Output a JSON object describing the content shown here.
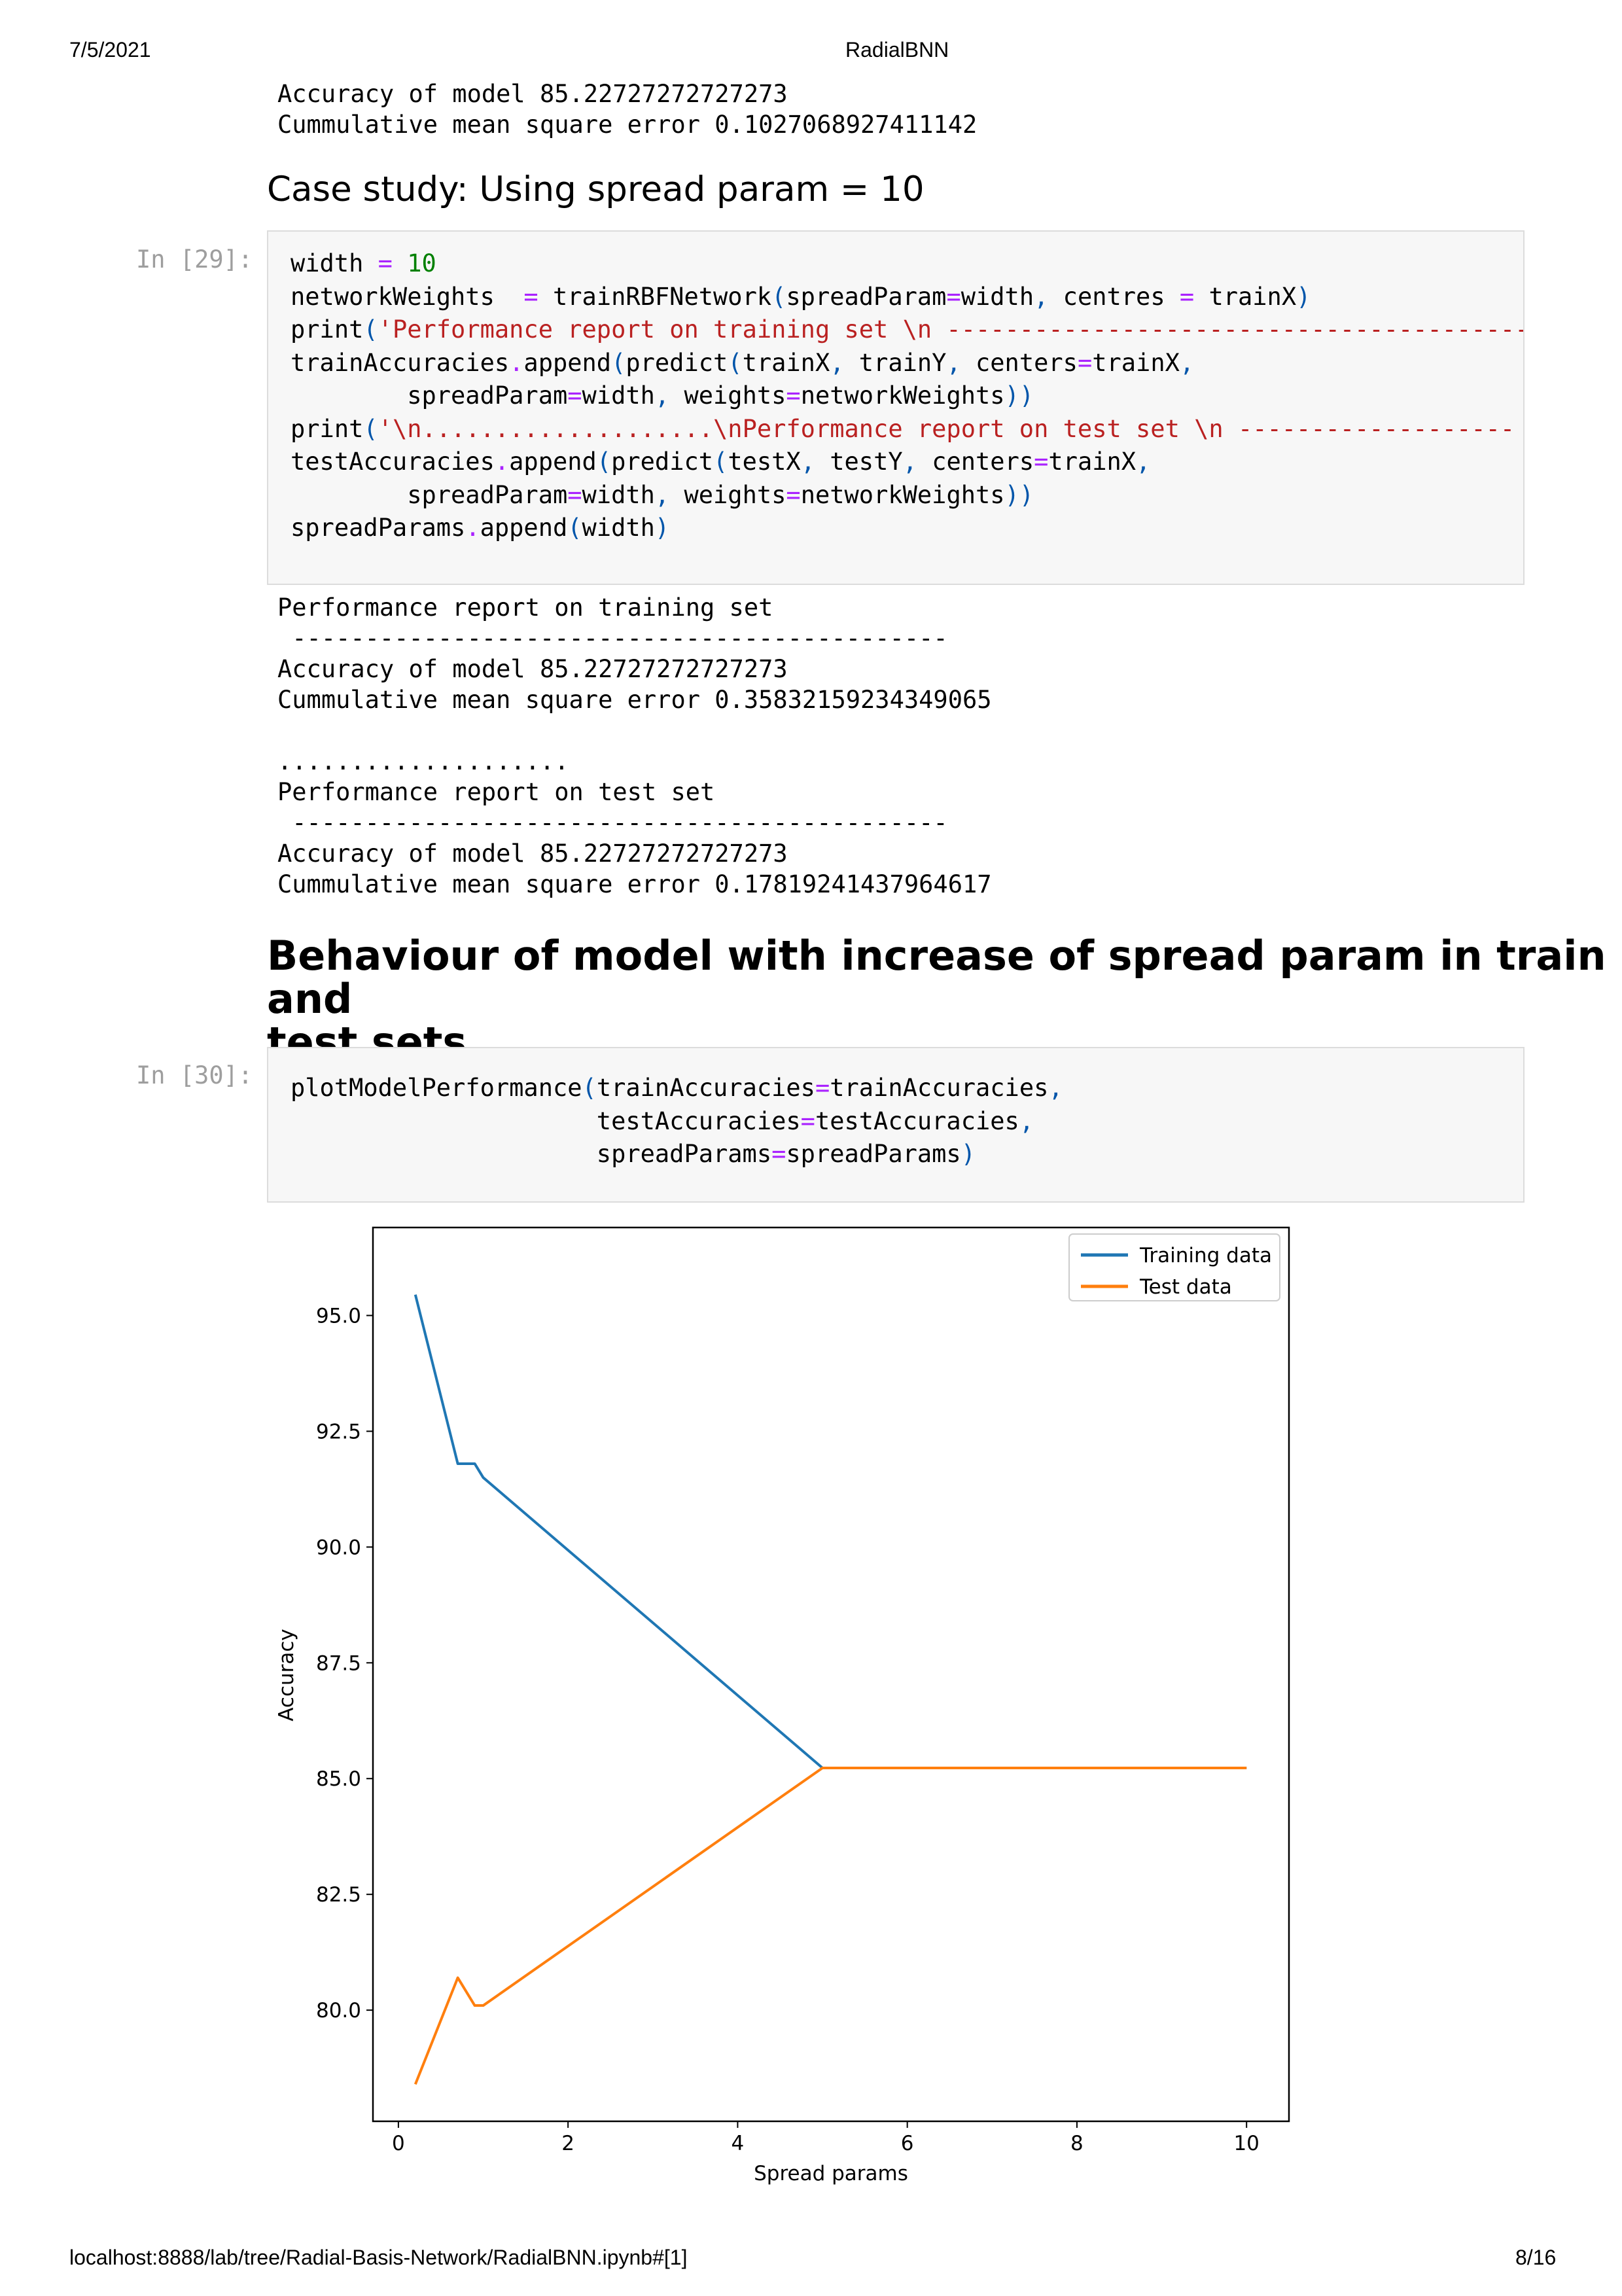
{
  "header": {
    "date": "7/5/2021",
    "title": "RadialBNN"
  },
  "footer": {
    "url": "localhost:8888/lab/tree/Radial-Basis-Network/RadialBNN.ipynb#[1]",
    "page": "8/16"
  },
  "prev_output": {
    "line1": "Accuracy of model 85.22727272727273",
    "line2": "Cummulative mean square error 0.1027068927411142"
  },
  "section1": {
    "heading": "Case study: Using spread param = 10"
  },
  "cell29": {
    "prompt": "In [29]:",
    "lines": [
      [
        "width ",
        "=",
        " ",
        "10"
      ],
      [
        "networkWeights  ",
        "=",
        " trainRBFNetwork",
        "(",
        "spreadParam",
        "=",
        "width",
        ",",
        " centres ",
        "=",
        " trainX",
        ")"
      ],
      [
        "print",
        "(",
        "'Performance report on training set \\n ----------------------------------------"
      ],
      [
        "trainAccuracies",
        ".",
        "append",
        "(",
        "predict",
        "(",
        "trainX",
        ",",
        " trainY",
        ",",
        " centers",
        "=",
        "trainX",
        ","
      ],
      [
        "        spreadParam",
        "=",
        "width",
        ",",
        " weights",
        "=",
        "networkWeights",
        "))"
      ],
      [
        "print",
        "(",
        "'\\n....................\\nPerformance report on test set \\n -------------------"
      ],
      [
        "testAccuracies",
        ".",
        "append",
        "(",
        "predict",
        "(",
        "testX",
        ",",
        " testY",
        ",",
        " centers",
        "=",
        "trainX",
        ","
      ],
      [
        "        spreadParam",
        "=",
        "width",
        ",",
        " weights",
        "=",
        "networkWeights",
        "))"
      ],
      [
        "spreadParams",
        ".",
        "append",
        "(",
        "width",
        ")"
      ]
    ]
  },
  "output29": {
    "lines": [
      "Performance report on training set",
      " ---------------------------------------------",
      "Accuracy of model 85.22727272727273",
      "Cummulative mean square error 0.35832159234349065",
      "",
      "....................",
      "Performance report on test set",
      " ---------------------------------------------",
      "Accuracy of model 85.22727272727273",
      "Cummulative mean square error 0.17819241437964617"
    ]
  },
  "section2": {
    "heading_line1": "Behaviour of model with increase of spread param in train and",
    "heading_line2": "test sets"
  },
  "cell30": {
    "prompt": "In [30]:",
    "lines": [
      [
        "plotModelPerformance",
        "(",
        "trainAccuracies",
        "=",
        "trainAccuracies",
        ","
      ],
      [
        "                     testAccuracies",
        "=",
        "testAccuracies",
        ","
      ],
      [
        "                     spreadParams",
        "=",
        "spreadParams",
        ")"
      ]
    ]
  },
  "colors": {
    "train": "#1f77b4",
    "test": "#ff7f0e"
  },
  "chart_data": {
    "type": "line",
    "title": "",
    "xlabel": "Spread params",
    "ylabel": "Accuracy",
    "xlim": [
      -0.3,
      10.5
    ],
    "ylim": [
      77.6,
      96.9
    ],
    "xticks": [
      0,
      2,
      4,
      6,
      8,
      10
    ],
    "xtick_labels": [
      "0",
      "2",
      "4",
      "6",
      "8",
      "10"
    ],
    "yticks": [
      80.0,
      82.5,
      85.0,
      87.5,
      90.0,
      92.5,
      95.0
    ],
    "ytick_labels": [
      "80.0",
      "82.5",
      "85.0",
      "87.5",
      "90.0",
      "92.5",
      "95.0"
    ],
    "legend_position": "upper right",
    "series": [
      {
        "name": "Training data",
        "x": [
          0.2,
          0.7,
          0.9,
          1.0,
          5.0,
          10.0
        ],
        "y": [
          95.45,
          91.8,
          91.8,
          91.5,
          85.23,
          85.23
        ]
      },
      {
        "name": "Test data",
        "x": [
          0.2,
          0.7,
          0.9,
          1.0,
          5.0,
          10.0
        ],
        "y": [
          78.4,
          80.7,
          80.1,
          80.1,
          85.23,
          85.23
        ]
      }
    ]
  }
}
